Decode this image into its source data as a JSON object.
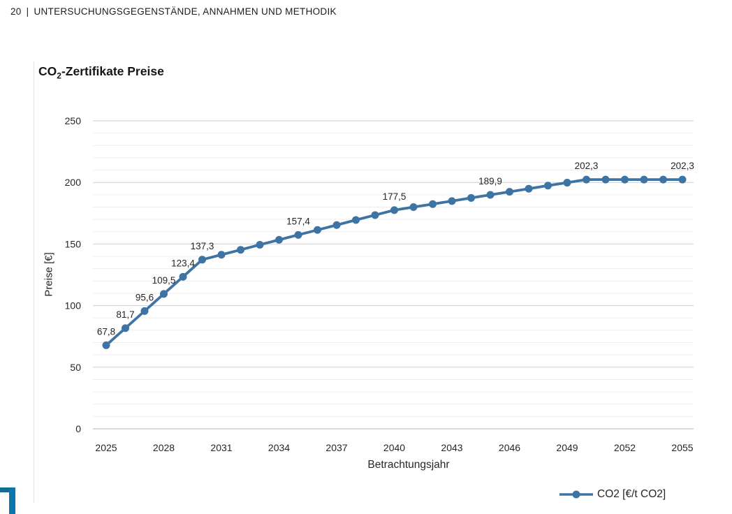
{
  "page": {
    "header": {
      "page_number": "20",
      "separator": "|",
      "title": "UNTERSUCHUNGSGEGENSTÄNDE, ANNAHMEN UND METHODIK"
    }
  },
  "chart": {
    "title_co": "CO",
    "title_sub": "2",
    "title_rest": "-Zertifikate Preise"
  },
  "chart_data": {
    "type": "line",
    "title": "CO2-Zertifikate Preise",
    "xlabel": "Betrachtungsjahr",
    "ylabel": "Preise [€]",
    "legend": "CO2 [€/t CO2]",
    "legend_position": "bottom-right",
    "grid": "horizontal, minor every 10, major every 50",
    "ylim": [
      0,
      250
    ],
    "y_ticks": [
      0,
      50,
      100,
      150,
      200,
      250
    ],
    "minor_grid_step": 10,
    "x_ticks": [
      2025,
      2028,
      2031,
      2034,
      2037,
      2040,
      2043,
      2046,
      2049,
      2052,
      2055
    ],
    "x": [
      2025,
      2026,
      2027,
      2028,
      2029,
      2030,
      2031,
      2032,
      2033,
      2034,
      2035,
      2036,
      2037,
      2038,
      2039,
      2040,
      2041,
      2042,
      2043,
      2044,
      2045,
      2046,
      2047,
      2048,
      2049,
      2050,
      2051,
      2052,
      2053,
      2054,
      2055
    ],
    "series": [
      {
        "name": "CO2 [€/t CO2]",
        "values": [
          67.8,
          81.7,
          95.6,
          109.5,
          123.4,
          137.3,
          141.3,
          145.3,
          149.4,
          153.4,
          157.4,
          161.4,
          165.4,
          169.5,
          173.5,
          177.5,
          180.0,
          182.4,
          184.9,
          187.4,
          189.9,
          192.4,
          194.9,
          197.4,
          199.8,
          202.3,
          202.3,
          202.3,
          202.3,
          202.3,
          202.3
        ]
      }
    ],
    "data_labels": [
      {
        "x": 2025,
        "text": "67,8"
      },
      {
        "x": 2026,
        "text": "81,7"
      },
      {
        "x": 2027,
        "text": "95,6"
      },
      {
        "x": 2028,
        "text": "109,5"
      },
      {
        "x": 2029,
        "text": "123,4"
      },
      {
        "x": 2030,
        "text": "137,3"
      },
      {
        "x": 2035,
        "text": "157,4"
      },
      {
        "x": 2040,
        "text": "177,5"
      },
      {
        "x": 2045,
        "text": "189,9"
      },
      {
        "x": 2050,
        "text": "202,3"
      },
      {
        "x": 2055,
        "text": "202,3"
      }
    ],
    "colors": {
      "line": "#3d74a3",
      "marker": "#3d74a3",
      "minor_grid": "#ededed",
      "major_grid": "#cfcfcf",
      "zero_line": "#b3b3b3",
      "text": "#262626"
    }
  }
}
